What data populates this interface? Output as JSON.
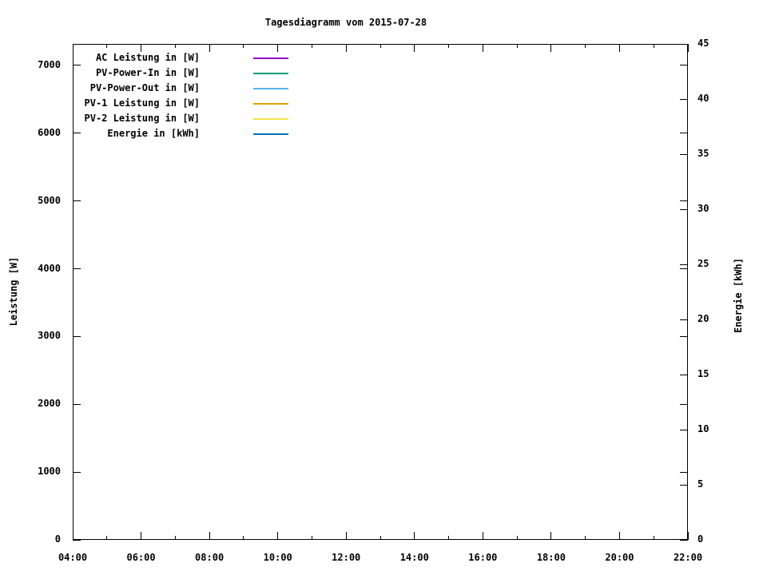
{
  "chart_data": {
    "type": "line",
    "title": "Tagesdiagramm vom 2015-07-28",
    "x": {
      "label": "",
      "major_tick_labels": [
        "04:00",
        "06:00",
        "08:00",
        "10:00",
        "12:00",
        "14:00",
        "16:00",
        "18:00",
        "20:00",
        "22:00"
      ],
      "major_hours": [
        4,
        6,
        8,
        10,
        12,
        14,
        16,
        18,
        20,
        22
      ],
      "minor_hours": [
        5,
        7,
        9,
        11,
        13,
        15,
        17,
        19,
        21
      ],
      "range_hours": [
        4,
        22
      ]
    },
    "y_left": {
      "label": "Leistung [W]",
      "ticks": [
        0,
        1000,
        2000,
        3000,
        4000,
        5000,
        6000,
        7000
      ],
      "range": [
        0,
        7318
      ]
    },
    "y_right": {
      "label": "Energie [kWh]",
      "ticks": [
        0,
        5,
        10,
        15,
        20,
        25,
        30,
        35,
        40,
        45
      ],
      "range": [
        0,
        45
      ]
    },
    "legend": {
      "position": "top-left-inside"
    },
    "series": [
      {
        "name": "AC Leistung in [W]",
        "color": "#9400d3",
        "points": []
      },
      {
        "name": "PV-Power-In in [W]",
        "color": "#009e73",
        "points": []
      },
      {
        "name": "PV-Power-Out in [W]",
        "color": "#56b4e9",
        "points": []
      },
      {
        "name": "PV-1 Leistung in [W]",
        "color": "#e69f00",
        "points": []
      },
      {
        "name": "PV-2 Leistung in [W]",
        "color": "#f0e442",
        "points": []
      },
      {
        "name": "Energie in [kWh]",
        "color": "#0072b2",
        "points": []
      }
    ],
    "plot_empty": true,
    "grid": false,
    "colors": {
      "background": "#ffffff",
      "axis": "#000000",
      "text": "#000000"
    }
  }
}
